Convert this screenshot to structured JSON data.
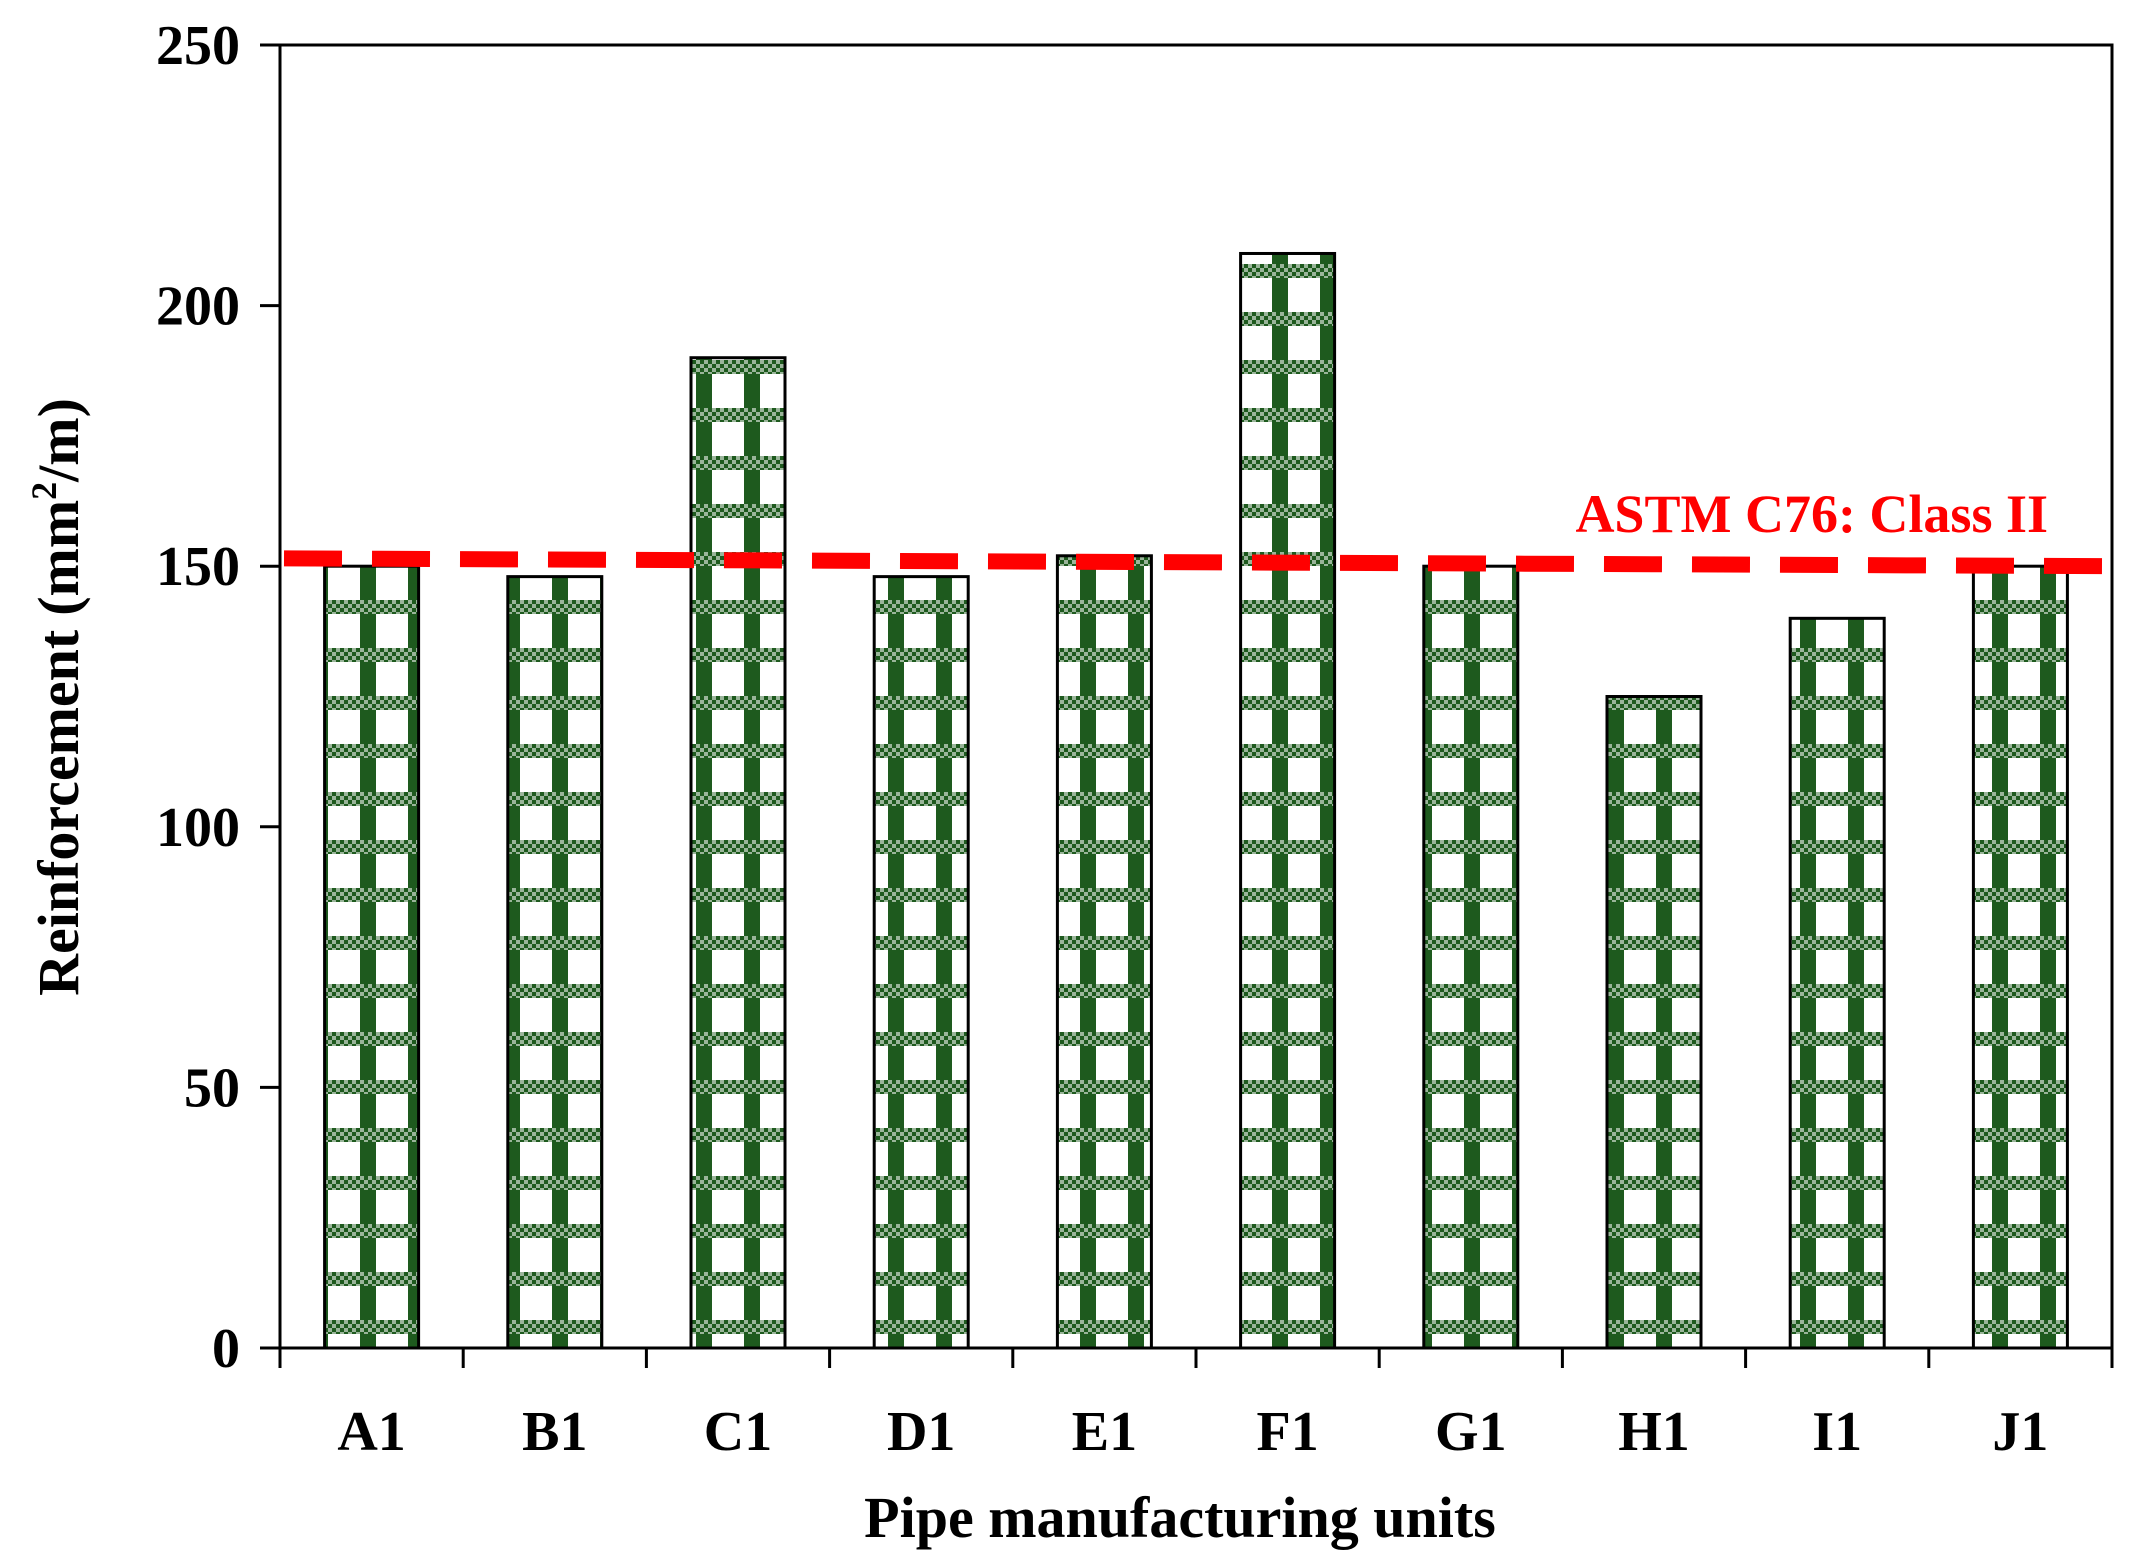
{
  "chart_data": {
    "type": "bar",
    "title": "",
    "xlabel": "Pipe manufacturing units",
    "ylabel": "Reinforcement",
    "ylabel_unit_prefix": "(mm",
    "ylabel_unit_sup": "2",
    "ylabel_unit_suffix": "/m)",
    "categories": [
      "A1",
      "B1",
      "C1",
      "D1",
      "E1",
      "F1",
      "G1",
      "H1",
      "I1",
      "J1"
    ],
    "series": [
      {
        "name": "Reinforcement",
        "values": [
          150,
          148,
          190,
          148,
          152,
          210,
          150,
          125,
          140,
          150
        ]
      }
    ],
    "ylim": [
      0,
      250
    ],
    "yticks": [
      0,
      50,
      100,
      150,
      200,
      250
    ],
    "grid": false,
    "reference_line": {
      "label": "ASTM C76: Class II",
      "y_start": 151.5,
      "y_end": 150,
      "color": "#ff0000"
    },
    "colors": {
      "bar_pattern_dark": "#1e5a1e",
      "bar_pattern_light": "#ffffff",
      "axis": "#000000"
    }
  }
}
